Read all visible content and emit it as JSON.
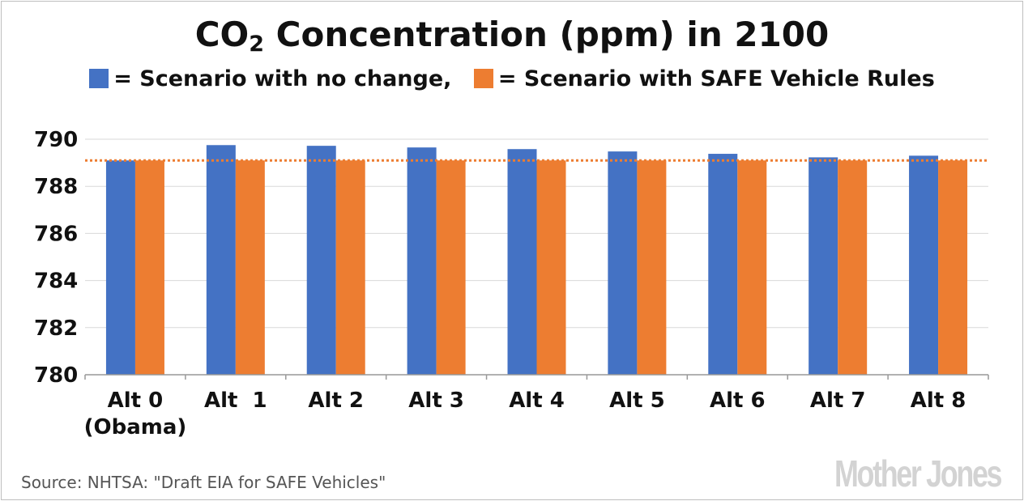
{
  "title": {
    "prefix": "CO",
    "subscript": "2",
    "suffix": " Concentration (ppm) in 2100"
  },
  "legend": {
    "entry1": "= Scenario with no change,",
    "entry2": "= Scenario with SAFE Vehicle Rules"
  },
  "source": "Source: NHTSA: \"Draft EIA for SAFE Vehicles\"",
  "logo": "Mother Jones",
  "colors": {
    "series1": "#4472c4",
    "series2": "#ed7d31",
    "reference_line": "#ed7d31",
    "grid": "#d9d9d9"
  },
  "chart_data": {
    "type": "bar",
    "categories": [
      [
        "Alt 0",
        "(Obama)"
      ],
      [
        "Alt  1"
      ],
      [
        "Alt 2"
      ],
      [
        "Alt 3"
      ],
      [
        "Alt 4"
      ],
      [
        "Alt 5"
      ],
      [
        "Alt 6"
      ],
      [
        "Alt 7"
      ],
      [
        "Alt 8"
      ]
    ],
    "series": [
      {
        "name": "Scenario with no change",
        "values": [
          789.1,
          789.75,
          789.72,
          789.65,
          789.58,
          789.48,
          789.38,
          789.23,
          789.3
        ]
      },
      {
        "name": "Scenario with SAFE Vehicle Rules",
        "values": [
          789.1,
          789.1,
          789.1,
          789.1,
          789.1,
          789.1,
          789.1,
          789.1,
          789.1
        ]
      }
    ],
    "reference_line": 789.1,
    "yticks": [
      "790",
      "788",
      "786",
      "784",
      "782",
      "780"
    ],
    "ylim": [
      780,
      790
    ],
    "grid": true
  }
}
